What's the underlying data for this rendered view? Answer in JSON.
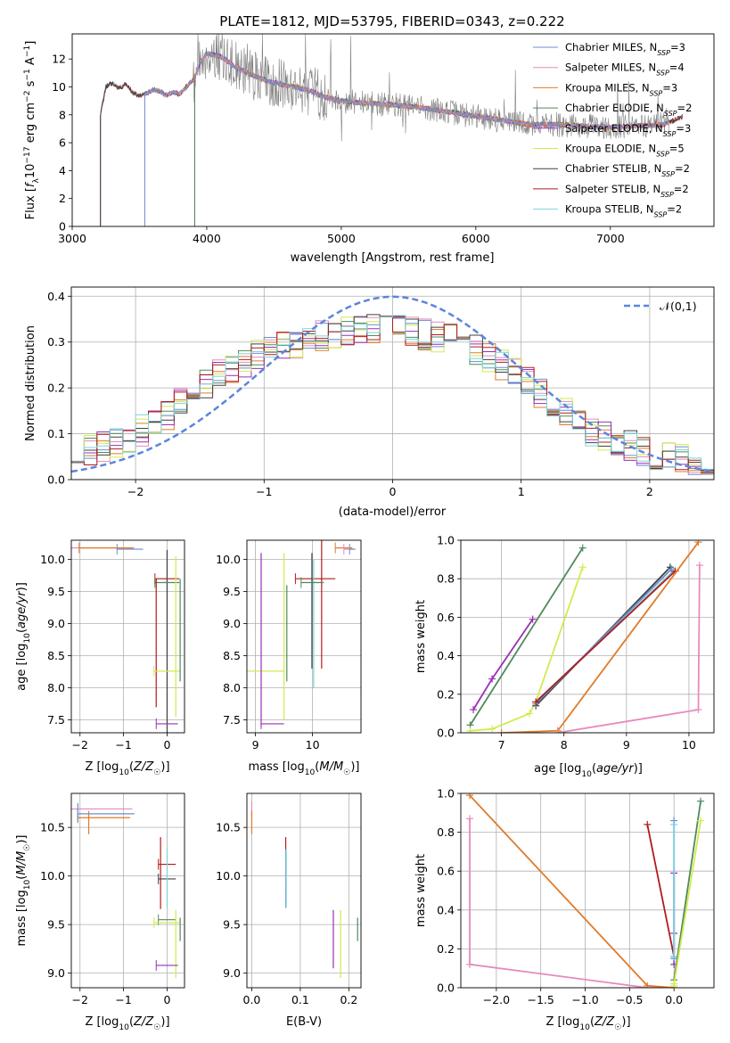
{
  "figure_title": "PLATE=1812, MJD=53795, FIBERID=0343, z=0.222",
  "colors": {
    "Chabrier MILES": "#6a8fcf",
    "Salpeter MILES": "#e58bbc",
    "Kroupa MILES": "#e07b29",
    "Chabrier ELODIE": "#4f8a5c",
    "Salpeter ELODIE": "#9a2fb8",
    "Kroupa ELODIE": "#d3ea4f",
    "Chabrier STELIB": "#404040",
    "Salpeter STELIB": "#b01c1c",
    "Kroupa STELIB": "#7ed3d9",
    "gaussian": "#5b86dc",
    "data": "#808080",
    "grid": "#b0b0b0"
  },
  "chart_data": [
    {
      "type": "line",
      "panel": "spectrum",
      "xlabel": "wavelength [Angstrom, rest frame]",
      "ylabel": "Flux [f_λ10^-17 erg cm^-2 s^-1 A^-1]",
      "xlim": [
        3000,
        7770
      ],
      "ylim": [
        0,
        13.8
      ],
      "xticks": [
        3000,
        4000,
        5000,
        6000,
        7000
      ],
      "yticks": [
        0,
        2,
        4,
        6,
        8,
        10,
        12
      ],
      "grid": false,
      "legend_position": "top-right",
      "legend": [
        {
          "name": "Chabrier MILES",
          "sub": "SSP",
          "n": "3"
        },
        {
          "name": "Salpeter MILES",
          "sub": "SSP",
          "n": "4"
        },
        {
          "name": "Kroupa MILES",
          "sub": "SSP",
          "n": "3"
        },
        {
          "name": "Chabrier ELODIE",
          "sub": "SSP",
          "n": "2"
        },
        {
          "name": "Salpeter ELODIE",
          "sub": "SSP",
          "n": "3"
        },
        {
          "name": "Kroupa ELODIE",
          "sub": "SSP",
          "n": "5"
        },
        {
          "name": "Chabrier STELIB",
          "sub": "SSP",
          "n": "2"
        },
        {
          "name": "Salpeter STELIB",
          "sub": "SSP",
          "n": "2"
        },
        {
          "name": "Kroupa STELIB",
          "sub": "SSP",
          "n": "2"
        }
      ],
      "continuum": {
        "wavelength": [
          3210,
          3250,
          3300,
          3350,
          3400,
          3450,
          3500,
          3550,
          3600,
          3650,
          3700,
          3750,
          3800,
          3850,
          3900,
          3950,
          4000,
          4100,
          4200,
          4300,
          4400,
          4500,
          4600,
          4700,
          4800,
          4900,
          5000,
          5200,
          5400,
          5600,
          5800,
          6000,
          6200,
          6400,
          6600,
          6800,
          7000,
          7200,
          7400,
          7540
        ],
        "flux": [
          8.0,
          10.0,
          10.3,
          9.9,
          10.2,
          9.6,
          9.4,
          9.5,
          9.8,
          9.7,
          9.4,
          9.6,
          9.5,
          10.0,
          10.5,
          11.7,
          12.4,
          12.2,
          11.5,
          11.0,
          10.6,
          10.3,
          10.1,
          9.9,
          9.6,
          9.2,
          9.0,
          8.8,
          8.7,
          8.5,
          8.2,
          7.9,
          7.6,
          7.3,
          7.3,
          7.2,
          7.1,
          7.2,
          7.3,
          7.9
        ]
      },
      "model_starts": {
        "Kroupa MILES": 3540,
        "Salpeter MILES": 3540,
        "Chabrier MILES": 3540,
        "Kroupa ELODIE": 3910,
        "Salpeter ELODIE": 3910,
        "Chabrier ELODIE": 3910,
        "Chabrier STELIB": 3210,
        "Salpeter STELIB": 3210,
        "Kroupa STELIB": 3210
      },
      "model_ends": {
        "Kroupa MILES": 7440,
        "Salpeter MILES": 7440,
        "Chabrier MILES": 7440,
        "Kroupa ELODIE": 6800,
        "Salpeter ELODIE": 6800,
        "Chabrier ELODIE": 6800,
        "Chabrier STELIB": 7540,
        "Salpeter STELIB": 7540,
        "Kroupa STELIB": 7540
      }
    },
    {
      "type": "line",
      "panel": "residuals",
      "xlabel": "(data-model)/error",
      "ylabel": "Normed distribution",
      "xlim": [
        -2.5,
        2.5
      ],
      "ylim": [
        0,
        0.42
      ],
      "xticks": [
        -2,
        -1,
        0,
        1,
        2
      ],
      "yticks": [
        0.0,
        0.1,
        0.2,
        0.3,
        0.4
      ],
      "grid": true,
      "legend_position": "top-right",
      "legend": [
        {
          "name": "𝒩(0,1)"
        }
      ],
      "bin_width": 0.1,
      "envelope": {
        "x": [
          -2.5,
          -2.2,
          -2.0,
          -1.8,
          -1.6,
          -1.4,
          -1.2,
          -1.0,
          -0.8,
          -0.6,
          -0.4,
          -0.2,
          0.0,
          0.2,
          0.4,
          0.6,
          0.8,
          1.0,
          1.2,
          1.4,
          1.6,
          1.8,
          2.0,
          2.2,
          2.5
        ],
        "y": [
          0.05,
          0.075,
          0.1,
          0.13,
          0.18,
          0.22,
          0.25,
          0.28,
          0.29,
          0.31,
          0.32,
          0.33,
          0.33,
          0.32,
          0.31,
          0.29,
          0.26,
          0.23,
          0.18,
          0.13,
          0.1,
          0.08,
          0.06,
          0.045,
          0.03
        ]
      }
    },
    {
      "type": "scatter",
      "panel": "age-vs-Z",
      "xlabel": "Z [log10(Z/Z☉)]",
      "ylabel": "age  [log10(age/yr)]",
      "xlim": [
        -2.2,
        0.4
      ],
      "ylim": [
        7.3,
        10.3
      ],
      "xticks": [
        -2,
        -1,
        0
      ],
      "yticks": [
        7.5,
        8.0,
        8.5,
        9.0,
        9.5,
        10.0
      ],
      "grid": true,
      "errorbars": [
        {
          "series": "Salpeter MILES",
          "x": -2.05,
          "xerr": 1.3,
          "y": 10.18,
          "yerr": 0.0
        },
        {
          "series": "Kroupa MILES",
          "x": -1.4,
          "xerr": 0.62,
          "y": 10.18,
          "yerr": 0.0
        },
        {
          "series": "Chabrier MILES",
          "x": -0.85,
          "xerr": 0.3,
          "y": 10.16,
          "yerr": 0.0
        },
        {
          "series": "Kroupa STELIB",
          "x": 0.0,
          "xerr": 0.0,
          "y": 8.8,
          "yerr": 1.35
        },
        {
          "series": "Chabrier STELIB",
          "x": 0.0,
          "xerr": 0.0,
          "y": 8.7,
          "yerr": 1.45
        },
        {
          "series": "Salpeter STELIB",
          "x": 0.0,
          "xerr": 0.28,
          "y": 9.7,
          "yerr": 0.0
        },
        {
          "series": "Chabrier ELODIE",
          "x": 0.0,
          "xerr": 0.28,
          "y": 9.64,
          "yerr": 0.0
        },
        {
          "series": "Salpeter STELIB",
          "x": -0.25,
          "xerr": 0.0,
          "y": 8.7,
          "yerr": 1.0
        },
        {
          "series": "Kroupa ELODIE",
          "x": 0.0,
          "xerr": 0.3,
          "y": 8.26,
          "yerr": 0.0
        },
        {
          "series": "Kroupa ELODIE",
          "x": 0.2,
          "xerr": 0.0,
          "y": 8.8,
          "yerr": 1.25
        },
        {
          "series": "Chabrier ELODIE",
          "x": 0.3,
          "xerr": 0.0,
          "y": 8.9,
          "yerr": 0.8
        },
        {
          "series": "Salpeter ELODIE",
          "x": 0.0,
          "xerr": 0.25,
          "y": 7.44,
          "yerr": 0.0
        }
      ]
    },
    {
      "type": "scatter",
      "panel": "age-vs-mass",
      "xlabel": "mass [log10(M/M☉)]",
      "xlim": [
        8.85,
        10.85
      ],
      "ylim": [
        7.3,
        10.3
      ],
      "xticks": [
        9,
        10
      ],
      "yticks": [
        7.5,
        8.0,
        8.5,
        9.0,
        9.5,
        10.0
      ],
      "grid": true,
      "errorbars": [
        {
          "series": "Kroupa MILES",
          "x": 10.55,
          "xerr": 0.15,
          "y": 10.18,
          "yerr": 0.0
        },
        {
          "series": "Salpeter MILES",
          "x": 10.65,
          "xerr": 0.1,
          "y": 10.16,
          "yerr": 0.0
        },
        {
          "series": "Chabrier MILES",
          "x": 10.7,
          "xerr": 0.05,
          "y": 10.16,
          "yerr": 0.0
        },
        {
          "series": "Salpeter STELIB",
          "x": 10.05,
          "xerr": 0.35,
          "y": 9.7,
          "yerr": 0.0
        },
        {
          "series": "Salpeter STELIB",
          "x": 10.16,
          "xerr": 0.0,
          "y": 9.3,
          "yerr": 1.0
        },
        {
          "series": "Chabrier STELIB",
          "x": 9.99,
          "xerr": 0.0,
          "y": 9.2,
          "yerr": 0.9
        },
        {
          "series": "Kroupa STELIB",
          "x": 10.02,
          "xerr": 0.0,
          "y": 9.0,
          "yerr": 1.0
        },
        {
          "series": "Chabrier ELODIE",
          "x": 10.0,
          "xerr": 0.2,
          "y": 9.64,
          "yerr": 0.0
        },
        {
          "series": "Chabrier ELODIE",
          "x": 9.55,
          "xerr": 0.0,
          "y": 8.85,
          "yerr": 0.75
        },
        {
          "series": "Kroupa ELODIE",
          "x": 9.15,
          "xerr": 0.35,
          "y": 8.26,
          "yerr": 0.0
        },
        {
          "series": "Kroupa ELODIE",
          "x": 9.5,
          "xerr": 0.0,
          "y": 8.8,
          "yerr": 1.3
        },
        {
          "series": "Salpeter ELODIE",
          "x": 9.1,
          "xerr": 0.0,
          "y": 8.75,
          "yerr": 1.35
        },
        {
          "series": "Salpeter ELODIE",
          "x": 9.3,
          "xerr": 0.2,
          "y": 7.44,
          "yerr": 0.0
        }
      ]
    },
    {
      "type": "line",
      "panel": "mass-weight-vs-age",
      "xlabel": "age  [log10(age/yr)]",
      "ylabel": "mass weight",
      "xlim": [
        6.35,
        10.4
      ],
      "ylim": [
        0,
        1
      ],
      "xticks": [
        7,
        8,
        9,
        10
      ],
      "yticks": [
        0.0,
        0.2,
        0.4,
        0.6,
        0.8,
        1.0
      ],
      "grid": true,
      "series": [
        {
          "name": "Salpeter ELODIE",
          "x": [
            6.55,
            6.85,
            7.5
          ],
          "y": [
            0.12,
            0.28,
            0.59
          ]
        },
        {
          "name": "Chabrier ELODIE",
          "x": [
            6.5,
            8.3
          ],
          "y": [
            0.04,
            0.96
          ]
        },
        {
          "name": "Kroupa ELODIE",
          "x": [
            6.5,
            6.85,
            7.45,
            7.55,
            8.3
          ],
          "y": [
            0.01,
            0.02,
            0.1,
            0.16,
            0.86
          ]
        },
        {
          "name": "Chabrier STELIB",
          "x": [
            7.55,
            9.7
          ],
          "y": [
            0.14,
            0.86
          ]
        },
        {
          "name": "Kroupa STELIB",
          "x": [
            7.55,
            9.75
          ],
          "y": [
            0.16,
            0.84
          ]
        },
        {
          "name": "Chabrier MILES",
          "x": [
            7.55,
            9.72
          ],
          "y": [
            0.15,
            0.85
          ]
        },
        {
          "name": "Salpeter STELIB",
          "x": [
            7.55,
            9.78
          ],
          "y": [
            0.16,
            0.84
          ]
        },
        {
          "name": "Kroupa MILES",
          "x": [
            7.0,
            7.9,
            10.15
          ],
          "y": [
            0.0,
            0.01,
            0.99
          ]
        },
        {
          "name": "Salpeter MILES",
          "x": [
            7.9,
            10.15,
            10.17
          ],
          "y": [
            0.0,
            0.12,
            0.87
          ]
        }
      ]
    },
    {
      "type": "scatter",
      "panel": "mass-vs-Z",
      "xlabel": "Z [log10(Z/Z☉)]",
      "ylabel": "mass [log10(M/M☉)]",
      "xlim": [
        -2.2,
        0.4
      ],
      "ylim": [
        8.85,
        10.85
      ],
      "xticks": [
        -2,
        -1,
        0
      ],
      "yticks": [
        9.0,
        9.5,
        10.0,
        10.5
      ],
      "grid": true,
      "errorbars": [
        {
          "series": "Salpeter MILES",
          "x": -2.05,
          "xerr": 1.25,
          "y": 10.69,
          "yerr": 0.0
        },
        {
          "series": "Chabrier MILES",
          "x": -1.4,
          "xerr": 0.65,
          "y": 10.64,
          "yerr": 0.0
        },
        {
          "series": "Kroupa MILES",
          "x": -1.45,
          "xerr": 0.6,
          "y": 10.6,
          "yerr": 0.0
        },
        {
          "series": "Chabrier MILES",
          "x": -2.05,
          "xerr": 0.0,
          "y": 10.65,
          "yerr": 0.1
        },
        {
          "series": "Kroupa MILES",
          "x": -1.8,
          "xerr": 0.0,
          "y": 10.55,
          "yerr": 0.12
        },
        {
          "series": "Salpeter STELIB",
          "x": -0.15,
          "xerr": 0.0,
          "y": 10.03,
          "yerr": 0.37
        },
        {
          "series": "Salpeter STELIB",
          "x": 0.0,
          "xerr": 0.2,
          "y": 10.12,
          "yerr": 0.0
        },
        {
          "series": "Chabrier STELIB",
          "x": 0.0,
          "xerr": 0.2,
          "y": 9.97,
          "yerr": 0.0
        },
        {
          "series": "Kroupa STELIB",
          "x": 0.0,
          "xerr": 0.0,
          "y": 9.98,
          "yerr": 0.3
        },
        {
          "series": "Chabrier ELODIE",
          "x": 0.0,
          "xerr": 0.2,
          "y": 9.55,
          "yerr": 0.0
        },
        {
          "series": "Kroupa ELODIE",
          "x": 0.0,
          "xerr": 0.3,
          "y": 9.52,
          "yerr": 0.0
        },
        {
          "series": "Kroupa ELODIE",
          "x": 0.2,
          "xerr": 0.0,
          "y": 9.3,
          "yerr": 0.35
        },
        {
          "series": "Chabrier ELODIE",
          "x": 0.3,
          "xerr": 0.0,
          "y": 9.45,
          "yerr": 0.12
        },
        {
          "series": "Salpeter ELODIE",
          "x": 0.0,
          "xerr": 0.25,
          "y": 9.08,
          "yerr": 0.0
        }
      ]
    },
    {
      "type": "scatter",
      "panel": "mass-vs-EBV",
      "xlabel": "E(B-V)",
      "xlim": [
        -0.01,
        0.225
      ],
      "ylim": [
        8.85,
        10.85
      ],
      "xticks": [
        0.0,
        0.1,
        0.2
      ],
      "yticks": [
        9.0,
        9.5,
        10.0,
        10.5
      ],
      "grid": true,
      "errorbars": [
        {
          "series": "Salpeter MILES",
          "x": 0.0,
          "xerr": 0.0,
          "y": 10.69,
          "yerr": 0.08
        },
        {
          "series": "Kroupa MILES",
          "x": 0.0,
          "xerr": 0.0,
          "y": 10.55,
          "yerr": 0.12
        },
        {
          "series": "Salpeter STELIB",
          "x": 0.07,
          "xerr": 0.0,
          "y": 10.12,
          "yerr": 0.28
        },
        {
          "series": "Chabrier MILES",
          "x": 0.07,
          "xerr": 0.0,
          "y": 9.97,
          "yerr": 0.3
        },
        {
          "series": "Kroupa STELIB",
          "x": 0.071,
          "xerr": 0.0,
          "y": 9.98,
          "yerr": 0.3
        },
        {
          "series": "Salpeter ELODIE",
          "x": 0.168,
          "xerr": 0.0,
          "y": 9.35,
          "yerr": 0.3
        },
        {
          "series": "Kroupa ELODIE",
          "x": 0.183,
          "xerr": 0.0,
          "y": 9.3,
          "yerr": 0.35
        },
        {
          "series": "Chabrier ELODIE",
          "x": 0.218,
          "xerr": 0.0,
          "y": 9.45,
          "yerr": 0.12
        }
      ]
    },
    {
      "type": "line",
      "panel": "mass-weight-vs-Z",
      "xlabel": "Z [log10(Z/Z☉)]",
      "ylabel": "mass weight",
      "xlim": [
        -2.4,
        0.45
      ],
      "ylim": [
        0,
        1
      ],
      "xticks": [
        -2.0,
        -1.5,
        -1.0,
        -0.5,
        0.0
      ],
      "yticks": [
        0.0,
        0.2,
        0.4,
        0.6,
        0.8,
        1.0
      ],
      "grid": true,
      "series": [
        {
          "name": "Salpeter MILES",
          "x": [
            -2.3,
            -2.3,
            -0.3,
            0.0
          ],
          "y": [
            0.87,
            0.12,
            0.0,
            0.0
          ]
        },
        {
          "name": "Kroupa MILES",
          "x": [
            -2.3,
            -0.3,
            0.0
          ],
          "y": [
            0.99,
            0.01,
            0.0
          ]
        },
        {
          "name": "Salpeter STELIB",
          "x": [
            -0.3,
            0.0
          ],
          "y": [
            0.84,
            0.16
          ]
        },
        {
          "name": "Salpeter ELODIE",
          "x": [
            0.0,
            0.0,
            0.0
          ],
          "y": [
            0.12,
            0.28,
            0.59
          ]
        },
        {
          "name": "Chabrier MILES",
          "x": [
            0.0,
            0.0
          ],
          "y": [
            0.15,
            0.86
          ]
        },
        {
          "name": "Kroupa STELIB",
          "x": [
            0.0,
            0.0
          ],
          "y": [
            0.16,
            0.84
          ]
        },
        {
          "name": "Chabrier ELODIE",
          "x": [
            0.0,
            0.3
          ],
          "y": [
            0.04,
            0.96
          ]
        },
        {
          "name": "Kroupa ELODIE",
          "x": [
            0.0,
            0.0,
            0.3
          ],
          "y": [
            0.01,
            0.02,
            0.86
          ]
        }
      ]
    }
  ]
}
